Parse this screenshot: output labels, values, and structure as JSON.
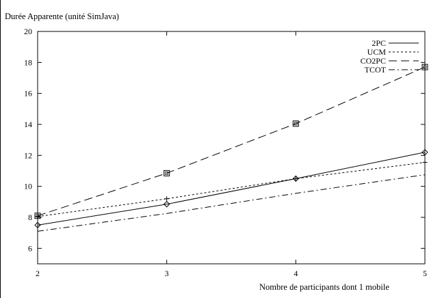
{
  "chart_data": {
    "type": "line",
    "title": "",
    "ylabel": "Durée Apparente (unité SimJava)",
    "xlabel": "Nombre de participants dont 1 mobile",
    "x": [
      2,
      3,
      4,
      5
    ],
    "xlim": [
      2,
      5
    ],
    "ylim": [
      5,
      20
    ],
    "xticks": [
      "2",
      "3",
      "4",
      "5"
    ],
    "yticks": [
      "6",
      "8",
      "10",
      "12",
      "14",
      "16",
      "18",
      "20"
    ],
    "grid": false,
    "legend_position": "top-right",
    "series": [
      {
        "name": "2PC",
        "values": [
          7.5,
          8.85,
          10.5,
          12.2
        ],
        "dash": "solid",
        "marker": "diamond"
      },
      {
        "name": "UCM",
        "values": [
          8.05,
          9.2,
          10.5,
          11.55
        ],
        "dash": "short-dash",
        "marker": "plus"
      },
      {
        "name": "CO2PC",
        "values": [
          8.1,
          10.85,
          14.05,
          17.7
        ],
        "dash": "long-dash",
        "marker": "square"
      },
      {
        "name": "TCOT",
        "values": [
          7.1,
          8.25,
          9.55,
          10.75
        ],
        "dash": "dash-dot",
        "marker": "none"
      }
    ]
  }
}
